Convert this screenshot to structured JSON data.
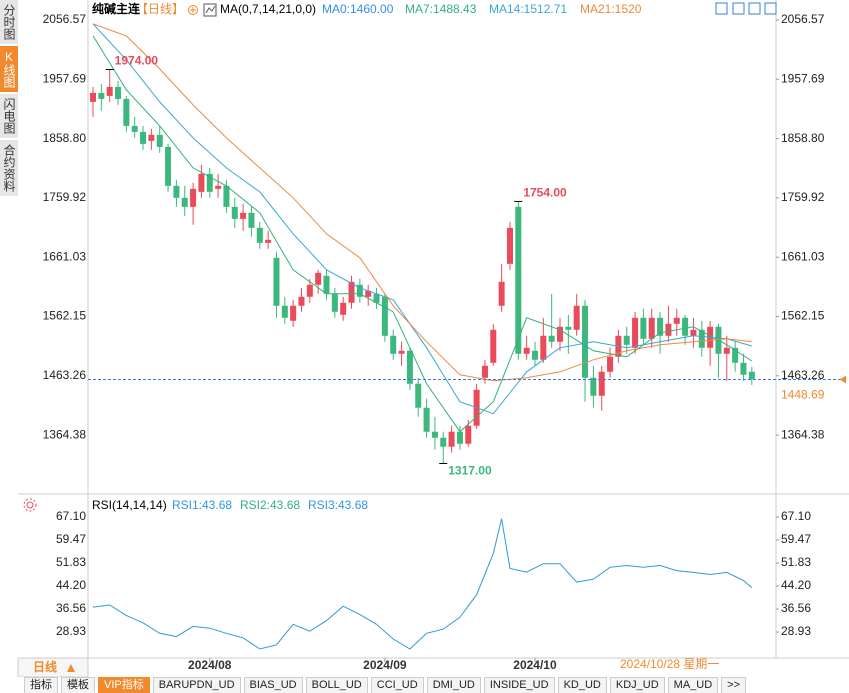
{
  "sidebar": [
    "分时图",
    "K线图",
    "闪电图",
    "合约资料"
  ],
  "chart_data": [
    {
      "type": "candlestick",
      "title": "纯碱主连",
      "period": "【日线】",
      "indicator": "MA(0,7,14,21,0,0)",
      "open": [
        1920,
        1935,
        1930,
        1945,
        1925,
        1880,
        1870,
        1855,
        1865,
        1845,
        1780,
        1760,
        1745,
        1770,
        1800,
        1775,
        1780,
        1745,
        1725,
        1735,
        1710,
        1685,
        1660,
        1580,
        1555,
        1580,
        1595,
        1615,
        1630,
        1600,
        1565,
        1585,
        1615,
        1595,
        1600,
        1595,
        1530,
        1500,
        1505,
        1450,
        1410,
        1370,
        1360,
        1345,
        1370,
        1350,
        1380,
        1460,
        1485,
        1580,
        1650,
        1745,
        1500,
        1505,
        1490,
        1530,
        1520,
        1545,
        1540,
        1580,
        1460,
        1430,
        1470,
        1495,
        1530,
        1510,
        1560,
        1525,
        1560,
        1530,
        1550,
        1560,
        1530,
        1540,
        1510,
        1545,
        1500,
        1510,
        1485,
        1470
      ],
      "close": [
        1935,
        1925,
        1945,
        1925,
        1880,
        1870,
        1850,
        1865,
        1845,
        1780,
        1760,
        1745,
        1775,
        1800,
        1770,
        1780,
        1745,
        1725,
        1735,
        1710,
        1685,
        1690,
        1580,
        1560,
        1580,
        1595,
        1615,
        1635,
        1600,
        1570,
        1585,
        1620,
        1595,
        1605,
        1585,
        1530,
        1500,
        1505,
        1450,
        1410,
        1370,
        1360,
        1345,
        1370,
        1350,
        1380,
        1440,
        1480,
        1540,
        1620,
        1710,
        1500,
        1510,
        1490,
        1530,
        1520,
        1545,
        1540,
        1580,
        1460,
        1430,
        1470,
        1495,
        1530,
        1515,
        1560,
        1525,
        1560,
        1530,
        1550,
        1560,
        1530,
        1540,
        1510,
        1545,
        1500,
        1510,
        1485,
        1465,
        1458
      ],
      "high": [
        1945,
        1950,
        1974,
        1955,
        1930,
        1895,
        1880,
        1875,
        1880,
        1850,
        1790,
        1780,
        1785,
        1815,
        1810,
        1800,
        1790,
        1760,
        1750,
        1745,
        1720,
        1705,
        1670,
        1595,
        1590,
        1610,
        1625,
        1640,
        1640,
        1610,
        1595,
        1630,
        1625,
        1615,
        1610,
        1600,
        1540,
        1520,
        1510,
        1460,
        1425,
        1395,
        1370,
        1380,
        1380,
        1390,
        1450,
        1490,
        1550,
        1650,
        1720,
        1754,
        1530,
        1520,
        1560,
        1600,
        1560,
        1565,
        1600,
        1590,
        1480,
        1480,
        1510,
        1540,
        1545,
        1570,
        1575,
        1575,
        1570,
        1580,
        1575,
        1565,
        1560,
        1555,
        1555,
        1550,
        1530,
        1520,
        1500,
        1478
      ],
      "low": [
        1895,
        1905,
        1920,
        1915,
        1870,
        1860,
        1840,
        1840,
        1835,
        1770,
        1745,
        1730,
        1715,
        1760,
        1760,
        1760,
        1735,
        1710,
        1705,
        1695,
        1675,
        1675,
        1560,
        1550,
        1545,
        1570,
        1585,
        1600,
        1590,
        1560,
        1555,
        1575,
        1585,
        1580,
        1575,
        1520,
        1490,
        1480,
        1440,
        1395,
        1360,
        1340,
        1317,
        1335,
        1340,
        1345,
        1375,
        1450,
        1480,
        1570,
        1640,
        1490,
        1490,
        1480,
        1485,
        1510,
        1505,
        1500,
        1530,
        1420,
        1410,
        1405,
        1460,
        1485,
        1500,
        1500,
        1515,
        1510,
        1500,
        1520,
        1530,
        1515,
        1510,
        1495,
        1480,
        1460,
        1455,
        1470,
        1455,
        1448
      ],
      "up_color": "#ea4a5a",
      "down_color": "#3cb77d",
      "series": [
        {
          "name": "MA0:1460.00",
          "color": "#2f8ef0",
          "x": [],
          "values": []
        },
        {
          "name": "MA7:1488.43",
          "color": "#30b27c",
          "x": [
            0,
            4,
            8,
            12,
            16,
            20,
            24,
            28,
            32,
            36,
            40,
            44,
            48,
            52,
            56,
            60,
            64,
            68,
            72,
            76,
            79
          ],
          "values": [
            2030,
            1940,
            1880,
            1810,
            1780,
            1735,
            1640,
            1600,
            1600,
            1570,
            1450,
            1370,
            1420,
            1560,
            1540,
            1505,
            1495,
            1535,
            1545,
            1515,
            1488
          ]
        },
        {
          "name": "MA14:1512.71",
          "color": "#3aa6d8",
          "x": [
            0,
            4,
            8,
            12,
            16,
            20,
            24,
            28,
            32,
            36,
            40,
            44,
            48,
            52,
            56,
            60,
            64,
            68,
            72,
            76,
            79
          ],
          "values": [
            2050,
            1990,
            1920,
            1860,
            1810,
            1770,
            1700,
            1640,
            1610,
            1590,
            1510,
            1420,
            1400,
            1470,
            1510,
            1520,
            1510,
            1520,
            1530,
            1525,
            1513
          ]
        },
        {
          "name": "MA21:1520",
          "color": "#f0883a",
          "x": [
            0,
            4,
            8,
            12,
            16,
            20,
            24,
            28,
            32,
            36,
            40,
            44,
            48,
            52,
            56,
            60,
            64,
            68,
            72,
            76,
            79
          ],
          "values": [
            2050,
            2030,
            1975,
            1915,
            1860,
            1810,
            1760,
            1700,
            1660,
            1580,
            1520,
            1465,
            1455,
            1460,
            1470,
            1490,
            1505,
            1515,
            1520,
            1525,
            1520
          ]
        }
      ],
      "xlim": [
        -0.6,
        81.9
      ],
      "xticks": [
        {
          "value": 14,
          "label": "2024/08"
        },
        {
          "value": 35,
          "label": "2024/09"
        },
        {
          "value": 53,
          "label": "2024/10"
        }
      ],
      "ylim": [
        1269.5,
        2069.9
      ],
      "yticks": [
        2056.57,
        1957.69,
        {
          "value": 1858.8,
          "label": "1858.80"
        },
        1759.92,
        1661.03,
        1562.15,
        1463.26,
        1364.38
      ],
      "last_price": {
        "value": 1448.69,
        "label": "1448.69"
      },
      "annotations": [
        {
          "value": 1974,
          "label": "1974.00"
        },
        {
          "value": 1754,
          "label": "1754.00"
        },
        {
          "value": 1317,
          "label": "1317.00"
        }
      ],
      "cursor_label": "2024/10/28 星期一",
      "period_button": "日线"
    },
    {
      "type": "line",
      "title": "RSI(14,14,14)",
      "series": [
        {
          "name": "RSI1:43.68",
          "color": "#2f97e0",
          "x": [
            0,
            2,
            4,
            6,
            8,
            10,
            12,
            14,
            16,
            18,
            20,
            22,
            24,
            26,
            28,
            30,
            32,
            34,
            36,
            38,
            40,
            42,
            44,
            46,
            48,
            49,
            50,
            52,
            54,
            56,
            58,
            60,
            62,
            64,
            66,
            68,
            70,
            72,
            74,
            76,
            78,
            79
          ],
          "values": [
            37.2,
            37.9,
            34.4,
            32,
            28.5,
            27.4,
            30.8,
            30.2,
            28.5,
            27,
            23.3,
            24.7,
            31.5,
            29.2,
            32.7,
            37.5,
            34.7,
            31.5,
            26.6,
            23.3,
            28.5,
            29.9,
            33.8,
            41.3,
            55,
            66.5,
            50,
            48.8,
            51.6,
            51.6,
            45.5,
            46.5,
            50.4,
            51,
            50.4,
            51,
            49.3,
            48.7,
            48,
            48.7,
            46,
            43.68
          ]
        },
        {
          "name": "RSI2:43.68",
          "color": "#30b27c",
          "x": [],
          "values": []
        },
        {
          "name": "RSI3:43.68",
          "color": "#2f97e0",
          "x": [],
          "values": []
        }
      ],
      "xlim": [
        -0.6,
        81.9
      ],
      "ylim": [
        21.3,
        72.74
      ],
      "yticks": [
        {
          "value": 67.1,
          "label": "67.10"
        },
        59.47,
        51.83,
        {
          "value": 44.2,
          "label": "44.20"
        },
        36.56,
        28.93
      ]
    }
  ],
  "tabs": [
    "指标",
    "模板",
    "VIP指标",
    "BARUPDN_UD",
    "BIAS_UD",
    "BOLL_UD",
    "CCI_UD",
    "DMI_UD",
    "INSIDE_UD",
    "KD_UD",
    "KDJ_UD",
    "MA_UD",
    ">>"
  ]
}
